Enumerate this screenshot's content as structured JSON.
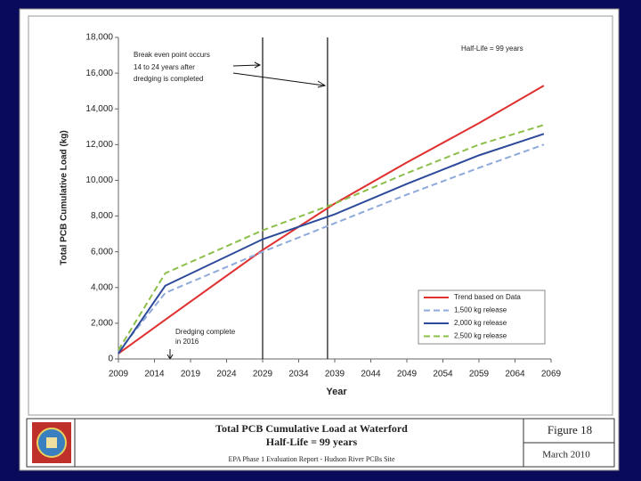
{
  "chart_data": {
    "type": "line",
    "y_label": "Total PCB Cumulative Load (kg)",
    "x_label": "Year",
    "annotations": [
      "Break even point occurs",
      "14 to 24 years after",
      "dredging is completed",
      "Half-Life = 99 years",
      "Dredging complete",
      "in 2016"
    ],
    "x": [
      2009,
      2015.5,
      2029,
      2039,
      2049,
      2059,
      2068
    ],
    "series": [
      {
        "name": "Trend based on Data",
        "color": "#e03030",
        "dash": false,
        "values": [
          300,
          2200,
          6100,
          8700,
          11000,
          13200,
          15300
        ]
      },
      {
        "name": "1,500 kg release",
        "color": "#8eaadb",
        "dash": true,
        "values": [
          400,
          3700,
          6000,
          7600,
          9200,
          10700,
          12000
        ]
      },
      {
        "name": "2,000 kg release",
        "color": "#2e4a9a",
        "dash": false,
        "values": [
          300,
          4100,
          6700,
          8100,
          9800,
          11400,
          12600
        ]
      },
      {
        "name": "2,500 kg release",
        "color": "#8cbf4a",
        "dash": true,
        "values": [
          500,
          4800,
          7200,
          8700,
          10400,
          12000,
          13100
        ]
      }
    ],
    "vlines": [
      2029,
      2038
    ],
    "xlim": [
      2009,
      2069
    ],
    "xticks": [
      2009,
      2014,
      2019,
      2024,
      2029,
      2034,
      2039,
      2044,
      2049,
      2054,
      2059,
      2064,
      2069
    ],
    "ylim": [
      0,
      18000
    ],
    "yticks": [
      0,
      {
        "value": 2000,
        "label": "2,000"
      },
      {
        "value": 4000,
        "label": "4,000"
      },
      {
        "value": 6000,
        "label": "6,000"
      },
      {
        "value": 8000,
        "label": "8,000"
      },
      {
        "value": 10000,
        "label": "10,000"
      },
      {
        "value": 12000,
        "label": "12,000"
      },
      {
        "value": 14000,
        "label": "14,000"
      },
      {
        "value": 16000,
        "label": "16,000"
      },
      {
        "value": 18000,
        "label": "18,000"
      }
    ],
    "legend": "lower right"
  },
  "footer": {
    "title": "Total PCB Cumulative Load at Waterford",
    "subtitle": "Half-Life = 99 years",
    "source": "EPA Phase 1 Evaluation Report - Hudson River PCBs Site",
    "figure": "Figure 18",
    "date": "March 2010"
  }
}
